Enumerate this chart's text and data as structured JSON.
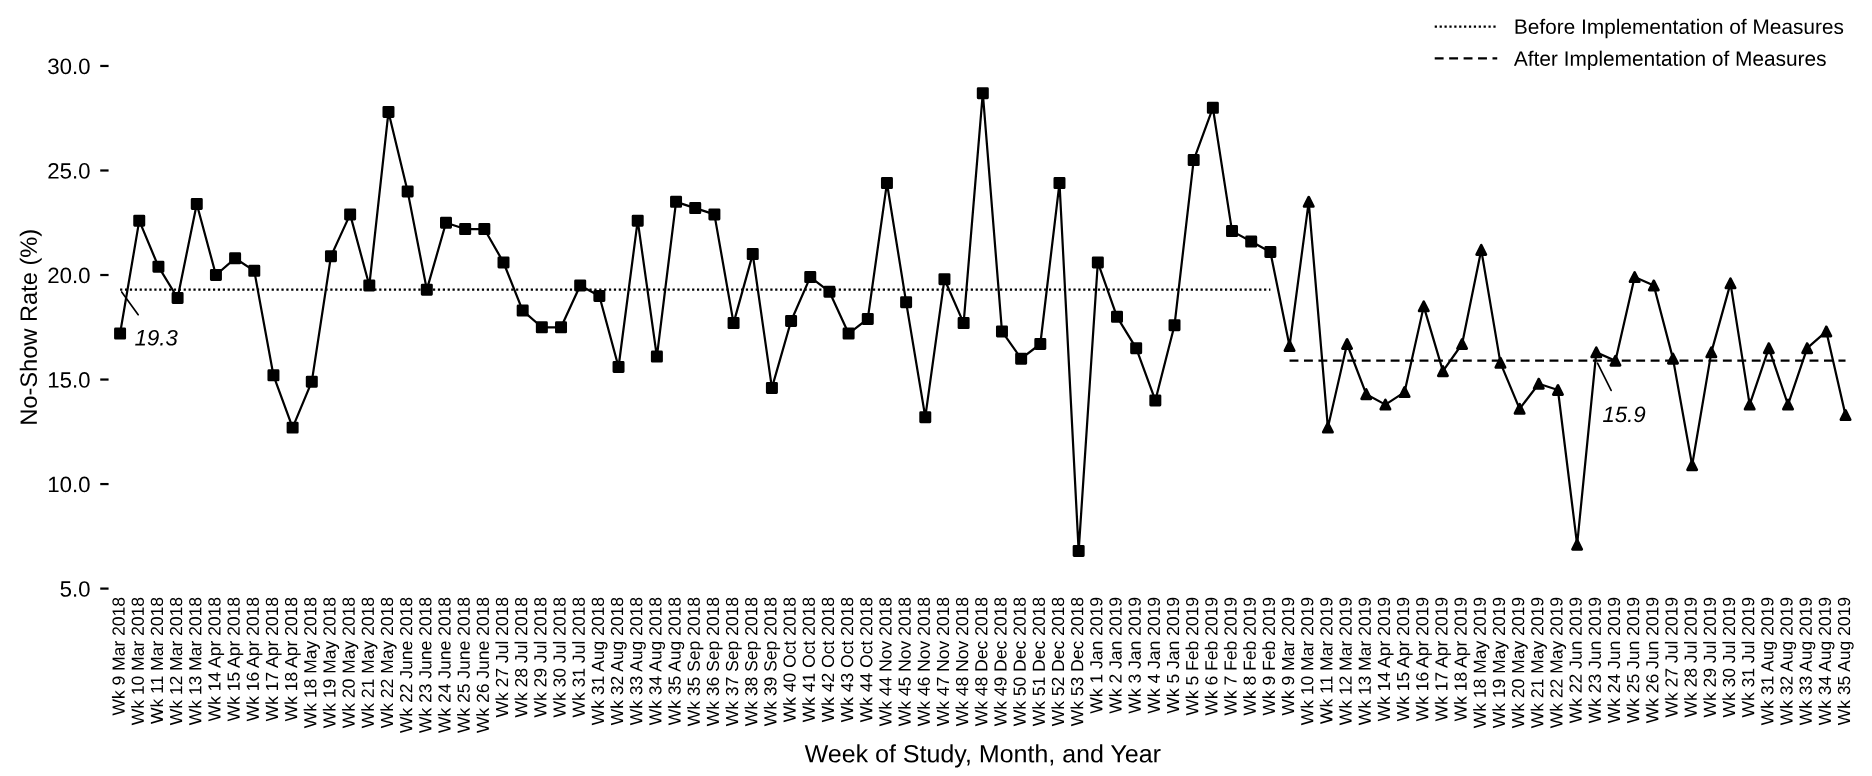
{
  "chart_data": {
    "type": "line",
    "xlabel": "Week of Study, Month, and Year",
    "ylabel": "No-Show Rate (%)",
    "categories": [
      "Wk 9 Mar 2018",
      "Wk 10 Mar 2018",
      "Wk 11 Mar 2018",
      "Wk 12 Mar 2018",
      "Wk 13 Mar 2018",
      "Wk 14 Apr 2018",
      "Wk 15 Apr 2018",
      "Wk 16 Apr 2018",
      "Wk 17 Apr 2018",
      "Wk 18 Apr 2018",
      "Wk 18 May 2018",
      "Wk 19 May 2018",
      "Wk 20 May 2018",
      "Wk 21 May 2018",
      "Wk 22 May 2018",
      "Wk 22 June 2018",
      "Wk 23 June 2018",
      "Wk 24 June 2018",
      "Wk 25 June 2018",
      "Wk 26 June 2018",
      "Wk 27 Jul 2018",
      "Wk 28 Jul 2018",
      "Wk 29 Jul 2018",
      "Wk 30 Jul 2018",
      "Wk 31 Jul 2018",
      "Wk 31 Aug 2018",
      "Wk 32 Aug 2018",
      "Wk 33 Aug 2018",
      "Wk 34 Aug 2018",
      "Wk 35 Aug 2018",
      "Wk 35 Sep 2018",
      "Wk 36 Sep 2018",
      "Wk 37 Sep 2018",
      "Wk 38 Sep 2018",
      "Wk 39 Sep 2018",
      "Wk 40 Oct 2018",
      "Wk 41 Oct 2018",
      "Wk 42 Oct 2018",
      "Wk 43 Oct 2018",
      "Wk 44 Oct 2018",
      "Wk 44 Nov 2018",
      "Wk 45 Nov 2018",
      "Wk 46 Nov 2018",
      "Wk 47 Nov 2018",
      "Wk 48 Nov 2018",
      "Wk 48 Dec 2018",
      "Wk 49 Dec 2018",
      "Wk 50 Dec 2018",
      "Wk 51 Dec 2018",
      "Wk 52 Dec 2018",
      "Wk 53 Dec 2018",
      "Wk 1 Jan 2019",
      "Wk 2 Jan 2019",
      "Wk 3 Jan 2019",
      "Wk 4 Jan 2019",
      "Wk 5 Jan 2019",
      "Wk 5 Feb 2019",
      "Wk 6 Feb 2019",
      "Wk 7 Feb 2019",
      "Wk 8 Feb 2019",
      "Wk 9 Feb 2019",
      "Wk 9 Mar 2019",
      "Wk 10 Mar 2019",
      "Wk 11 Mar 2019",
      "Wk 12 Mar 2019",
      "Wk 13 Mar 2019",
      "Wk 14 Apr 2019",
      "Wk 15 Apr 2019",
      "Wk 16 Apr 2019",
      "Wk 17 Apr 2019",
      "Wk 18 Apr 2019",
      "Wk 18 May 2019",
      "Wk 19 May 2019",
      "Wk 20 May 2019",
      "Wk 21 May 2019",
      "Wk 22 May 2019",
      "Wk 22 Jun 2019",
      "Wk 23 Jun 2019",
      "Wk 24 Jun 2019",
      "Wk 25 Jun 2019",
      "Wk 26 Jun 2019",
      "Wk 27 Jul 2019",
      "Wk 28 Jul 2019",
      "Wk 29 Jul 2019",
      "Wk 30 Jul 2019",
      "Wk 31 Jul 2019",
      "Wk 31 Aug 2019",
      "Wk 32 Aug 2019",
      "Wk 33 Aug 2019",
      "Wk 34 Aug 2019",
      "Wk 35 Aug 2019"
    ],
    "series": [
      {
        "color": "#000000",
        "marker": "none",
        "line_style": "solid",
        "values": [
          17.2,
          22.6,
          20.4,
          18.9,
          23.4,
          20.0,
          20.8,
          20.2,
          15.2,
          12.7,
          14.9,
          20.9,
          22.9,
          19.5,
          27.8,
          24.0,
          19.3,
          22.5,
          22.2,
          22.2,
          20.6,
          18.3,
          17.5,
          17.5,
          19.5,
          19.0,
          15.6,
          22.6,
          16.1,
          23.5,
          23.2,
          22.9,
          17.7,
          21.0,
          14.6,
          17.8,
          19.9,
          19.2,
          17.2,
          17.9,
          24.4,
          18.7,
          13.2,
          19.8,
          17.7,
          28.7,
          17.3,
          16.0,
          16.7,
          24.4,
          6.8,
          20.6,
          18.0,
          16.5,
          14.0,
          17.6,
          25.5,
          28.0,
          22.1,
          21.6,
          21.1,
          16.6,
          23.5,
          12.7,
          16.7,
          14.3,
          13.8,
          14.4,
          18.5,
          15.4,
          16.7,
          21.2,
          15.8,
          13.6,
          14.8,
          14.5,
          7.1,
          16.3,
          15.9,
          19.9,
          19.5,
          16.0,
          10.9,
          16.3,
          19.6,
          13.8,
          16.5,
          13.8,
          16.5,
          17.3,
          13.3
        ]
      },
      {
        "type": "scatter",
        "color": "#000000",
        "marker": "square",
        "values": [
          17.2,
          22.6,
          20.4,
          18.9,
          23.4,
          20.0,
          20.8,
          20.2,
          15.2,
          12.7,
          14.9,
          20.9,
          22.9,
          19.5,
          27.8,
          24.0,
          19.3,
          22.5,
          22.2,
          22.2,
          20.6,
          18.3,
          17.5,
          17.5,
          19.5,
          19.0,
          15.6,
          22.6,
          16.1,
          23.5,
          23.2,
          22.9,
          17.7,
          21.0,
          14.6,
          17.8,
          19.9,
          19.2,
          17.2,
          17.9,
          24.4,
          18.7,
          13.2,
          19.8,
          17.7,
          28.7,
          17.3,
          16.0,
          16.7,
          24.4,
          6.8,
          20.6,
          18.0,
          16.5,
          14.0,
          17.6,
          25.5,
          28.0,
          22.1,
          21.6,
          21.1,
          null,
          null,
          null,
          null,
          null,
          null,
          null,
          null,
          null,
          null,
          null,
          null,
          null,
          null,
          null,
          null,
          null,
          null,
          null,
          null,
          null,
          null,
          null,
          null,
          null,
          null,
          null,
          null,
          null,
          null
        ]
      },
      {
        "type": "scatter",
        "color": "#000000",
        "marker": "triangle",
        "values": [
          null,
          null,
          null,
          null,
          null,
          null,
          null,
          null,
          null,
          null,
          null,
          null,
          null,
          null,
          null,
          null,
          null,
          null,
          null,
          null,
          null,
          null,
          null,
          null,
          null,
          null,
          null,
          null,
          null,
          null,
          null,
          null,
          null,
          null,
          null,
          null,
          null,
          null,
          null,
          null,
          null,
          null,
          null,
          null,
          null,
          null,
          null,
          null,
          null,
          null,
          null,
          null,
          null,
          null,
          null,
          null,
          null,
          null,
          null,
          null,
          null,
          16.6,
          23.5,
          12.7,
          16.7,
          14.3,
          13.8,
          14.4,
          18.5,
          15.4,
          16.7,
          21.2,
          15.8,
          13.6,
          14.8,
          14.5,
          7.1,
          16.3,
          15.9,
          19.9,
          19.5,
          16.0,
          10.9,
          16.3,
          19.6,
          13.8,
          16.5,
          13.8,
          16.5,
          17.3,
          13.3
        ]
      },
      {
        "name": "Before Implementation of Measures",
        "color": "#000000",
        "marker": "none",
        "line_style": "dotted",
        "values": [
          19.3,
          19.3,
          19.3,
          19.3,
          19.3,
          19.3,
          19.3,
          19.3,
          19.3,
          19.3,
          19.3,
          19.3,
          19.3,
          19.3,
          19.3,
          19.3,
          19.3,
          19.3,
          19.3,
          19.3,
          19.3,
          19.3,
          19.3,
          19.3,
          19.3,
          19.3,
          19.3,
          19.3,
          19.3,
          19.3,
          19.3,
          19.3,
          19.3,
          19.3,
          19.3,
          19.3,
          19.3,
          19.3,
          19.3,
          19.3,
          19.3,
          19.3,
          19.3,
          19.3,
          19.3,
          19.3,
          19.3,
          19.3,
          19.3,
          19.3,
          19.3,
          19.3,
          19.3,
          19.3,
          19.3,
          19.3,
          19.3,
          19.3,
          19.3,
          19.3,
          19.3,
          null,
          null,
          null,
          null,
          null,
          null,
          null,
          null,
          null,
          null,
          null,
          null,
          null,
          null,
          null,
          null,
          null,
          null,
          null,
          null,
          null,
          null,
          null,
          null,
          null,
          null,
          null,
          null,
          null,
          null
        ]
      },
      {
        "name": "After Implementation of Measures",
        "color": "#000000",
        "marker": "none",
        "line_style": "dashed",
        "values": [
          null,
          null,
          null,
          null,
          null,
          null,
          null,
          null,
          null,
          null,
          null,
          null,
          null,
          null,
          null,
          null,
          null,
          null,
          null,
          null,
          null,
          null,
          null,
          null,
          null,
          null,
          null,
          null,
          null,
          null,
          null,
          null,
          null,
          null,
          null,
          null,
          null,
          null,
          null,
          null,
          null,
          null,
          null,
          null,
          null,
          null,
          null,
          null,
          null,
          null,
          null,
          null,
          null,
          null,
          null,
          null,
          null,
          null,
          null,
          null,
          null,
          15.9,
          15.9,
          15.9,
          15.9,
          15.9,
          15.9,
          15.9,
          15.9,
          15.9,
          15.9,
          15.9,
          15.9,
          15.9,
          15.9,
          15.9,
          15.9,
          15.9,
          15.9,
          15.9,
          15.9,
          15.9,
          15.9,
          15.9,
          15.9,
          15.9,
          15.9,
          15.9,
          15.9,
          15.9,
          15.9
        ]
      }
    ],
    "annotations": [
      {
        "text": "19.3",
        "x": "Wk 9 Mar 2018",
        "y": 19.3
      },
      {
        "text": "15.9",
        "x": "Wk 23 Jun 2019",
        "y": 15.9
      }
    ],
    "ylim": [
      5,
      30
    ],
    "yticks": [
      {
        "value": 5,
        "label": "5.0"
      },
      {
        "value": 10,
        "label": "10.0"
      },
      {
        "value": 15,
        "label": "15.0"
      },
      {
        "value": 20,
        "label": "20.0"
      },
      {
        "value": 25,
        "label": "25.0"
      },
      {
        "value": 30,
        "label": "30.0"
      }
    ],
    "grid": false,
    "legend": "top right"
  }
}
